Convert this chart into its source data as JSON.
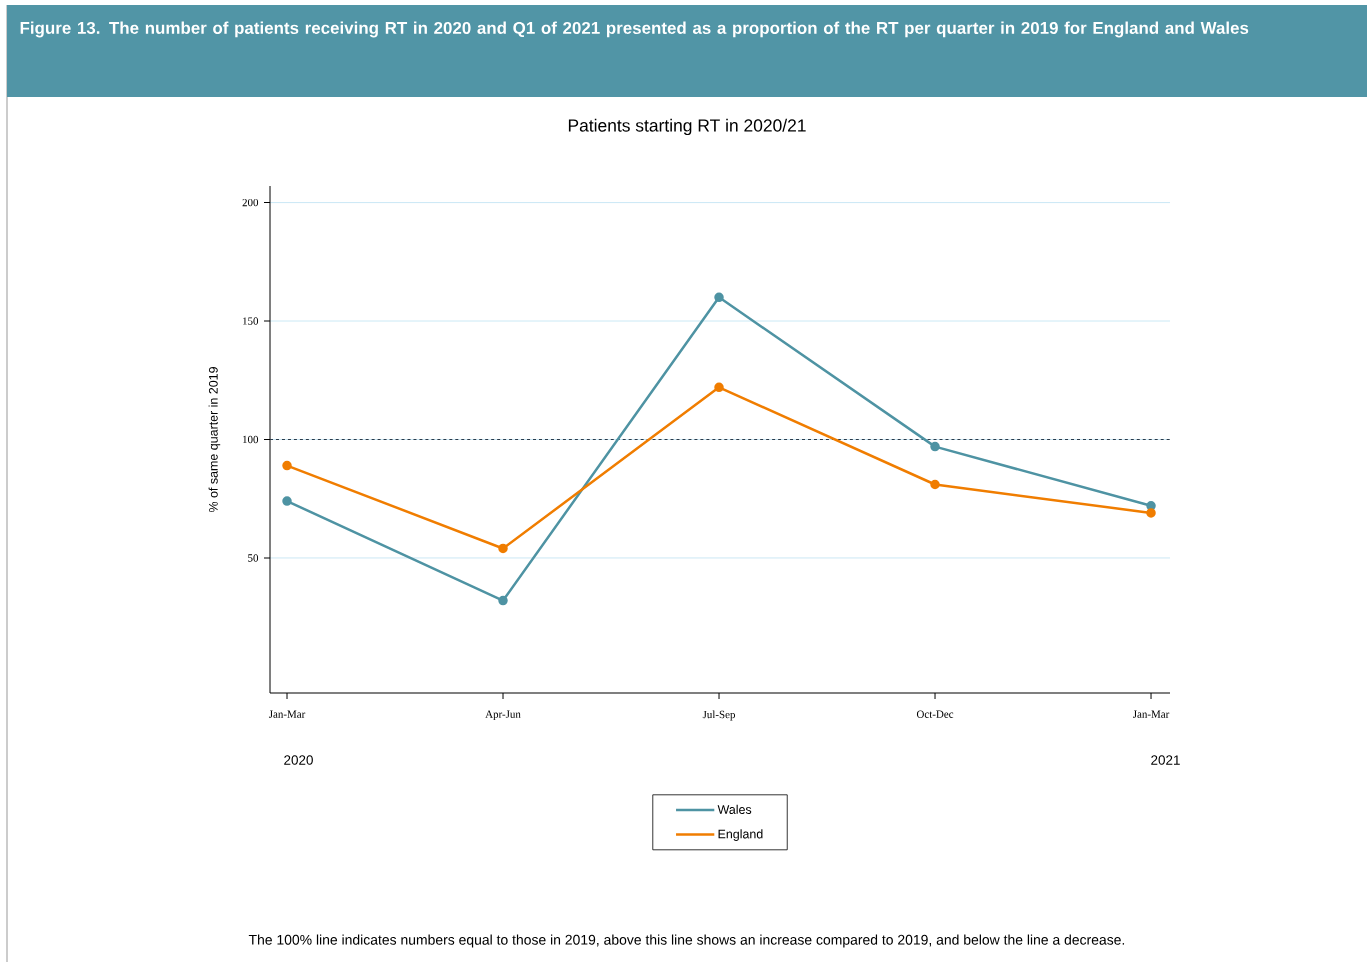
{
  "chart_data": {
    "type": "line",
    "title": "Figure 13. The number of patients receiving RT in 2020 and Q1 of 2021 presented as a proportion of the RT per quarter in 2019 for England and Wales",
    "subtitle": "Patients starting RT in 2020/21",
    "ylabel": "% of same quarter in 2019",
    "categories": [
      "Jan-Mar",
      "Apr-Jun",
      "Jul-Sep",
      "Oct-Dec",
      "Jan-Mar"
    ],
    "series": [
      {
        "name": "Wales",
        "color": "#4e93a3",
        "values": [
          74,
          32,
          160,
          97,
          72
        ]
      },
      {
        "name": "England",
        "color": "#f07d00",
        "values": [
          89,
          54,
          122,
          81,
          69
        ]
      }
    ],
    "ylim": [
      -7,
      207
    ],
    "yticks": [
      50,
      100,
      150,
      200
    ],
    "grid": "y",
    "marker": "circle",
    "legend": "bottom",
    "ref_lines": [
      {
        "axis": "y",
        "value": 100,
        "color": "#2b3a4a",
        "line_style": "dashed"
      }
    ],
    "annotations": [
      "2020",
      "2021",
      "The 100% line indicates numbers equal to those in 2019, above this line shows an increase compared to 2019, and below the line a decrease."
    ]
  }
}
